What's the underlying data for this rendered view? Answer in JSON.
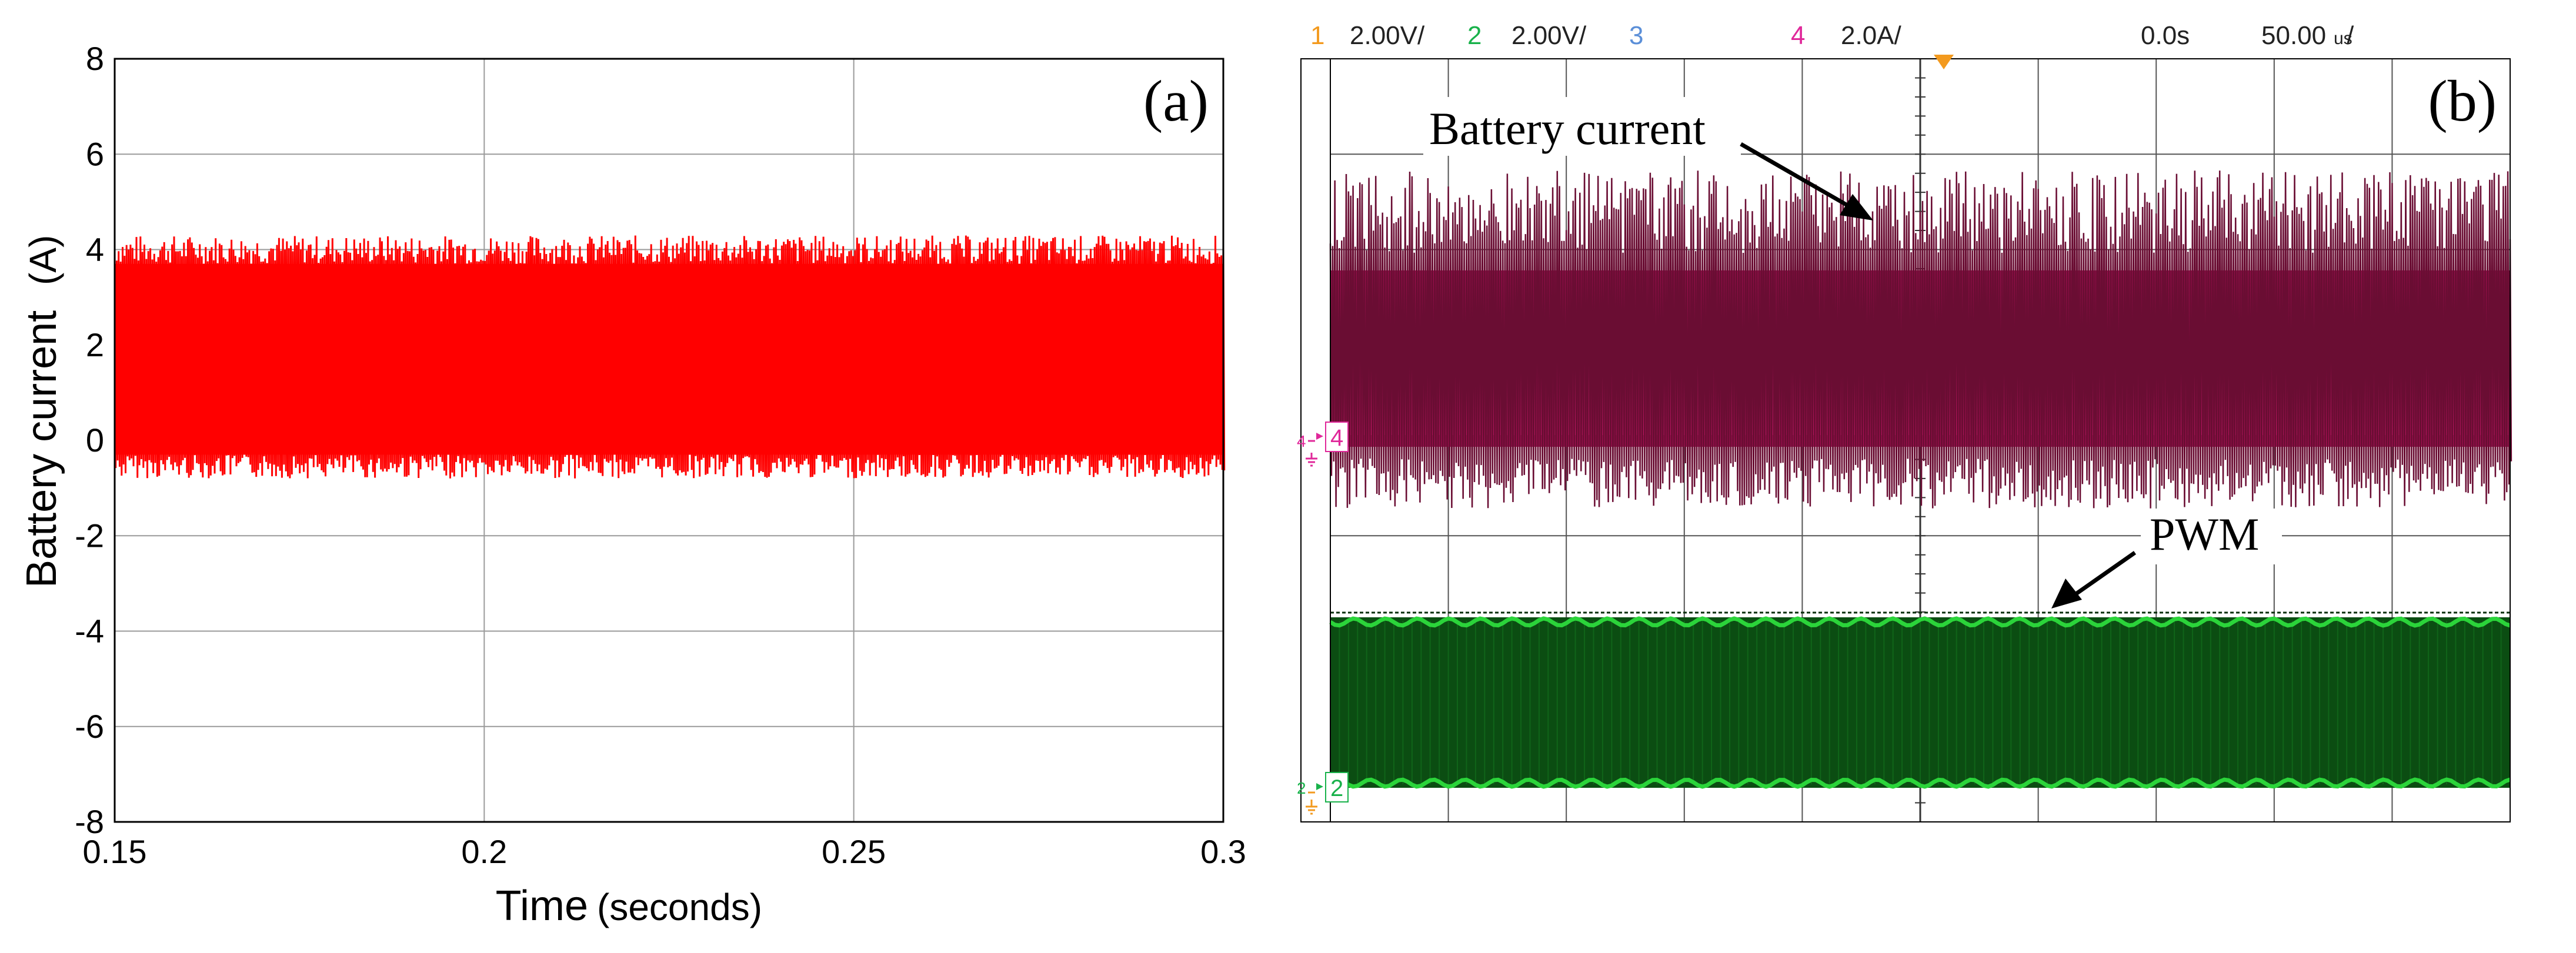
{
  "chart_data": [
    {
      "type": "line",
      "panel_label": "(a)",
      "title": "",
      "xlabel": "Time",
      "xlabel_unit": "(seconds)",
      "ylabel": "Battery current",
      "ylabel_unit": "(A)",
      "xlim": [
        0.15,
        0.3
      ],
      "ylim": [
        -8,
        8
      ],
      "xticks": [
        "0.15",
        "0.2",
        "0.25",
        "0.3"
      ],
      "xtick_values": [
        0.15,
        0.2,
        0.25,
        0.3
      ],
      "yticks": [
        "-8",
        "-6",
        "-4",
        "-2",
        "0",
        "2",
        "4",
        "6",
        "8"
      ],
      "ytick_values": [
        -8,
        -6,
        -4,
        -2,
        0,
        2,
        4,
        6,
        8
      ],
      "grid": true,
      "series": [
        {
          "color": "#ff0000",
          "envelope_max": 4.3,
          "envelope_min": -0.8,
          "band_upper": 3.7,
          "band_lower": -0.3
        }
      ]
    },
    {
      "type": "line",
      "panel_label": "(b)",
      "header": [
        {
          "channel": "1",
          "scale": "2.00V/",
          "color": "#f39a1e"
        },
        {
          "channel": "2",
          "scale": "2.00V/",
          "color": "#19b24b"
        },
        {
          "channel": "3",
          "scale": "",
          "color": "#5b8fd8"
        },
        {
          "channel": "4",
          "scale": "2.0A/",
          "color": "#e0289a"
        }
      ],
      "time_offset": "0.0s",
      "time_scale": "50.00",
      "time_scale_unit": "us",
      "channel_markers": [
        {
          "label": "4",
          "color": "#e0289a"
        },
        {
          "label": "2",
          "color": "#19b24b"
        }
      ],
      "annotations": [
        "Battery current",
        "PWM"
      ],
      "grid": true,
      "series": [
        {
          "name": "Battery current",
          "color": "#b0105a",
          "dark_color": "#6a0d33"
        },
        {
          "name": "PWM",
          "color": "#0b4d12",
          "edge_color": "#2bd43a"
        }
      ]
    }
  ]
}
